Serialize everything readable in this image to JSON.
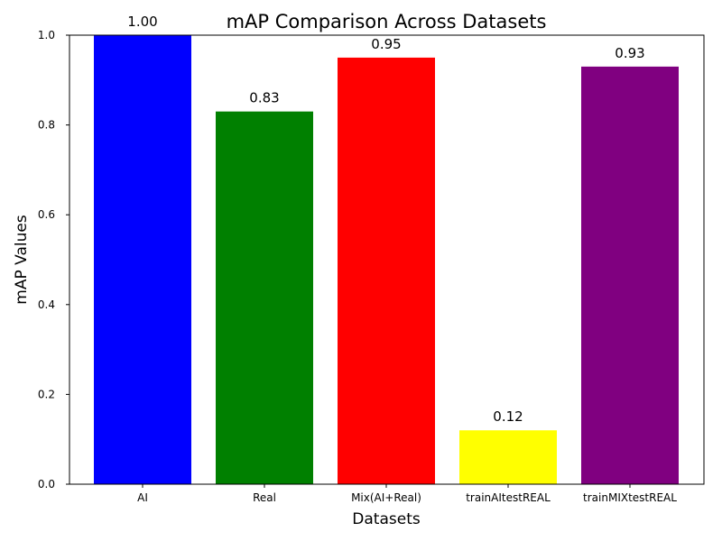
{
  "chart_data": {
    "type": "bar",
    "title": "mAP Comparison Across Datasets",
    "xlabel": "Datasets",
    "ylabel": "mAP Values",
    "categories": [
      "AI",
      "Real",
      "Mix(AI+Real)",
      "trainAItestREAL",
      "trainMIXtestREAL"
    ],
    "values": [
      1.0,
      0.83,
      0.95,
      0.12,
      0.93
    ],
    "data_labels": [
      "1.00",
      "0.83",
      "0.95",
      "0.12",
      "0.93"
    ],
    "colors": [
      "#0000ff",
      "#008000",
      "#ff0000",
      "#ffff00",
      "#800080"
    ],
    "ylim": [
      0,
      1.0
    ],
    "yticks": [
      0.0,
      0.2,
      0.4,
      0.6,
      0.8,
      1.0
    ],
    "ytick_labels": [
      "0.0",
      "0.2",
      "0.4",
      "0.6",
      "0.8",
      "1.0"
    ],
    "grid": false,
    "legend": "none"
  }
}
